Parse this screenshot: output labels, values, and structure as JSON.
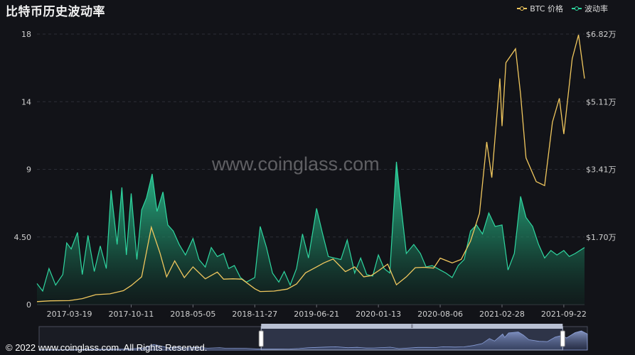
{
  "chart_data": {
    "type": "line",
    "title": "比特币历史波动率",
    "x_ticks": [
      "2017-03-19",
      "2017-10-11",
      "2018-05-05",
      "2018-11-27",
      "2019-06-21",
      "2020-01-13",
      "2020-08-06",
      "2021-02-28",
      "2021-09-22"
    ],
    "y_left_ticks": [
      "0",
      "4.50",
      "9",
      "14",
      "18"
    ],
    "y_right_ticks": [
      "$1.70万",
      "$3.41万",
      "$5.11万",
      "$6.82万"
    ],
    "y_left_range": [
      0,
      18
    ],
    "y_right_range": [
      0,
      68200
    ],
    "grid": true,
    "legend_position": "top-right",
    "series": [
      {
        "name": "BTC 价格",
        "color": "#f0c75e",
        "axis": "right",
        "x": [
          "2016-12-01",
          "2017-01-15",
          "2017-03-19",
          "2017-05-01",
          "2017-06-15",
          "2017-08-01",
          "2017-09-15",
          "2017-10-11",
          "2017-11-15",
          "2017-12-17",
          "2018-01-15",
          "2018-02-06",
          "2018-03-05",
          "2018-04-06",
          "2018-05-05",
          "2018-06-15",
          "2018-07-25",
          "2018-08-15",
          "2018-09-15",
          "2018-10-15",
          "2018-11-27",
          "2018-12-15",
          "2019-01-30",
          "2019-03-15",
          "2019-04-15",
          "2019-05-15",
          "2019-06-21",
          "2019-07-15",
          "2019-08-15",
          "2019-09-25",
          "2019-10-26",
          "2019-11-25",
          "2019-12-20",
          "2020-01-13",
          "2020-02-13",
          "2020-03-13",
          "2020-04-15",
          "2020-05-15",
          "2020-06-15",
          "2020-07-15",
          "2020-08-06",
          "2020-09-15",
          "2020-10-15",
          "2020-11-15",
          "2020-12-15",
          "2021-01-08",
          "2021-01-25",
          "2021-02-21",
          "2021-02-28",
          "2021-03-13",
          "2021-04-14",
          "2021-05-01",
          "2021-05-19",
          "2021-06-22",
          "2021-07-20",
          "2021-08-15",
          "2021-09-07",
          "2021-09-22",
          "2021-10-20",
          "2021-11-10",
          "2021-11-30"
        ],
        "values": [
          750,
          950,
          1000,
          1500,
          2500,
          2700,
          3500,
          4800,
          7000,
          19500,
          13000,
          7000,
          11000,
          6800,
          9500,
          6500,
          8200,
          6400,
          6500,
          6400,
          4000,
          3300,
          3400,
          3900,
          5200,
          8000,
          9500,
          10500,
          11500,
          8300,
          9500,
          7000,
          7300,
          8500,
          10200,
          5000,
          7000,
          9300,
          9400,
          9200,
          11700,
          10500,
          11400,
          16000,
          23000,
          41000,
          32000,
          57000,
          45000,
          61000,
          64500,
          53000,
          37000,
          31000,
          30000,
          46000,
          52000,
          43000,
          62000,
          68000,
          57000
        ]
      },
      {
        "name": "波动率",
        "color": "#2fd6a0",
        "axis": "left",
        "x": [
          "2016-12-01",
          "2016-12-20",
          "2017-01-10",
          "2017-02-01",
          "2017-02-25",
          "2017-03-10",
          "2017-03-25",
          "2017-04-15",
          "2017-05-01",
          "2017-05-20",
          "2017-06-10",
          "2017-06-30",
          "2017-07-20",
          "2017-08-05",
          "2017-08-25",
          "2017-09-10",
          "2017-09-25",
          "2017-10-11",
          "2017-10-30",
          "2017-11-15",
          "2017-12-01",
          "2017-12-20",
          "2018-01-05",
          "2018-01-25",
          "2018-02-10",
          "2018-02-28",
          "2018-03-20",
          "2018-04-10",
          "2018-05-05",
          "2018-05-25",
          "2018-06-15",
          "2018-07-05",
          "2018-07-25",
          "2018-08-15",
          "2018-09-01",
          "2018-09-20",
          "2018-10-10",
          "2018-10-30",
          "2018-11-27",
          "2018-12-15",
          "2019-01-05",
          "2019-01-25",
          "2019-02-15",
          "2019-03-05",
          "2019-03-25",
          "2019-04-15",
          "2019-05-05",
          "2019-05-25",
          "2019-06-21",
          "2019-07-10",
          "2019-07-30",
          "2019-08-20",
          "2019-09-10",
          "2019-10-01",
          "2019-10-26",
          "2019-11-15",
          "2019-12-05",
          "2019-12-25",
          "2020-01-13",
          "2020-02-01",
          "2020-02-20",
          "2020-03-13",
          "2020-03-25",
          "2020-04-15",
          "2020-05-10",
          "2020-06-01",
          "2020-06-20",
          "2020-07-10",
          "2020-08-06",
          "2020-08-25",
          "2020-09-15",
          "2020-10-05",
          "2020-10-25",
          "2020-11-15",
          "2020-12-05",
          "2020-12-25",
          "2021-01-15",
          "2021-02-05",
          "2021-02-28",
          "2021-03-20",
          "2021-04-10",
          "2021-05-01",
          "2021-05-19",
          "2021-06-10",
          "2021-06-30",
          "2021-07-20",
          "2021-08-10",
          "2021-08-30",
          "2021-09-22",
          "2021-10-10",
          "2021-10-30",
          "2021-11-30"
        ],
        "values": [
          1.4,
          0.9,
          2.4,
          1.3,
          2.0,
          4.1,
          3.7,
          4.8,
          2.0,
          4.6,
          2.2,
          3.9,
          2.4,
          7.6,
          4.0,
          7.8,
          3.3,
          7.4,
          3.0,
          6.3,
          7.1,
          8.7,
          6.2,
          7.5,
          5.3,
          4.9,
          4.0,
          3.3,
          4.4,
          3.0,
          2.5,
          3.8,
          3.2,
          3.4,
          2.4,
          2.6,
          1.8,
          1.5,
          1.8,
          5.2,
          3.8,
          2.1,
          1.5,
          2.2,
          1.3,
          2.4,
          4.7,
          3.1,
          6.4,
          4.8,
          3.2,
          3.1,
          3.0,
          4.3,
          2.1,
          3.1,
          2.0,
          1.9,
          3.3,
          2.4,
          2.1,
          9.5,
          7.2,
          3.4,
          4.0,
          3.4,
          2.5,
          2.6,
          2.3,
          2.1,
          1.8,
          2.6,
          3.0,
          4.9,
          5.3,
          4.7,
          6.1,
          5.2,
          5.3,
          2.3,
          3.4,
          7.2,
          5.8,
          5.2,
          4.0,
          3.1,
          3.6,
          3.3,
          3.6,
          3.2,
          3.4,
          3.8
        ]
      }
    ]
  },
  "watermark": "www.coinglass.com",
  "copyright": "© 2022 www.coinglass.com. All Rights Reserved.",
  "navigator": {
    "handle_grip": "⦀",
    "window_start_fraction": 0.405,
    "window_end_fraction": 0.955
  }
}
